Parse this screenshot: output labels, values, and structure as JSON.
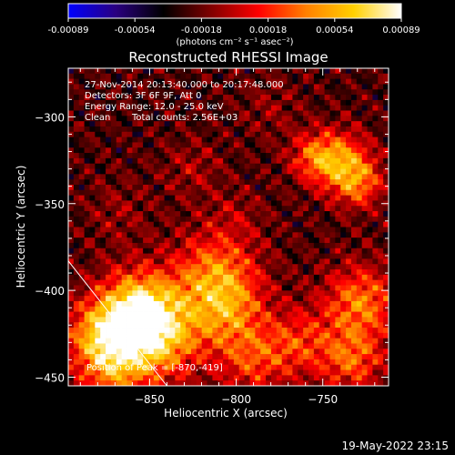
{
  "chart_data": {
    "type": "heatmap",
    "title": "Reconstructed RHESSI Image",
    "xlabel": "Heliocentric X (arcsec)",
    "ylabel": "Heliocentric Y (arcsec)",
    "xlim": [
      -897,
      -712
    ],
    "ylim": [
      -455,
      -272
    ],
    "x_ticks": [
      -850,
      -800,
      -750
    ],
    "y_ticks": [
      -450,
      -400,
      -350,
      -300
    ],
    "colorbar": {
      "label": "(photons cm⁻² s⁻¹ asec⁻²)",
      "tick_labels": [
        "-0.00089",
        "-0.00054",
        "-0.00018",
        "0.00018",
        "0.00054",
        "0.00089"
      ],
      "vmin": -0.00089,
      "vmax": 0.00089,
      "colors": [
        "#0000ff",
        "#2a0080",
        "#000000",
        "#800000",
        "#ff0000",
        "#ff8000",
        "#ffd000",
        "#ffffff"
      ]
    },
    "annotations": [
      "27-Nov-2014 20:13:40.000 to 20:17:48.000",
      "Detectors: 3F 6F 9F, Att 0",
      "Energy Range: 12.0 - 25.0 keV",
      "Clean",
      "Total counts: 2.56E+03"
    ],
    "peak_label": "Position of Peak = [-870,-419]",
    "peak_position": [
      -870,
      -419
    ],
    "limb_line": [
      [
        -897,
        -383
      ],
      [
        -840,
        -455
      ]
    ],
    "grid_size": 60,
    "emission_sources": [
      {
        "x": -857,
        "y": -412,
        "amplitude": 0.00089,
        "radius": 16
      },
      {
        "x": -845,
        "y": -427,
        "amplitude": 0.0007,
        "radius": 18
      },
      {
        "x": -879,
        "y": -426,
        "amplitude": 0.00058,
        "radius": 14
      },
      {
        "x": -871,
        "y": -445,
        "amplitude": 0.0005,
        "radius": 14
      },
      {
        "x": -812,
        "y": -390,
        "amplitude": 0.00058,
        "radius": 17
      },
      {
        "x": -805,
        "y": -412,
        "amplitude": 0.0005,
        "radius": 15
      },
      {
        "x": -791,
        "y": -440,
        "amplitude": 0.00042,
        "radius": 14
      },
      {
        "x": -764,
        "y": -430,
        "amplitude": 0.0004,
        "radius": 14
      },
      {
        "x": -728,
        "y": -407,
        "amplitude": 0.0006,
        "radius": 15
      },
      {
        "x": -733,
        "y": -440,
        "amplitude": 0.0005,
        "radius": 13
      },
      {
        "x": -739,
        "y": -326,
        "amplitude": 0.00062,
        "radius": 12
      },
      {
        "x": -755,
        "y": -323,
        "amplitude": 0.00045,
        "radius": 10
      },
      {
        "x": -729,
        "y": -339,
        "amplitude": 0.00045,
        "radius": 10
      },
      {
        "x": -825,
        "y": -330,
        "amplitude": 0.00018,
        "radius": 12
      },
      {
        "x": -800,
        "y": -357,
        "amplitude": 0.00015,
        "radius": 11
      },
      {
        "x": -868,
        "y": -355,
        "amplitude": 0.00014,
        "radius": 13
      },
      {
        "x": -780,
        "y": -295,
        "amplitude": 0.00013,
        "radius": 12
      }
    ]
  },
  "footer": {
    "date": "19-May-2022 23:15"
  }
}
